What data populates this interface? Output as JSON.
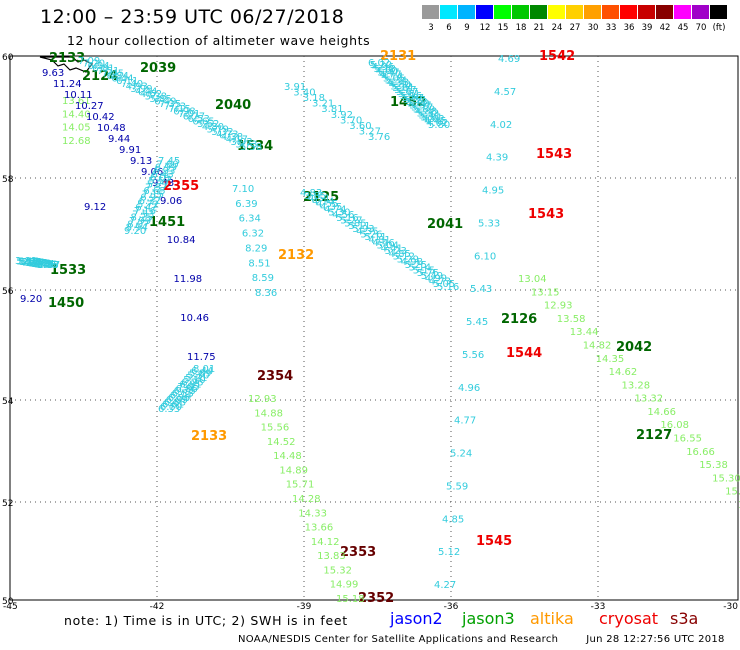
{
  "header": {
    "title": "12:00 – 23:59 UTC 06/27/2018",
    "subtitle": "12 hour collection of altimeter wave heights"
  },
  "colorbar": [
    {
      "color": "#9a9a9a",
      "label": "3"
    },
    {
      "color": "#00e8ff",
      "label": "6"
    },
    {
      "color": "#00b4ff",
      "label": "9"
    },
    {
      "color": "#0000ff",
      "label": "12"
    },
    {
      "color": "#00ff00",
      "label": "15"
    },
    {
      "color": "#00c800",
      "label": "18"
    },
    {
      "color": "#008800",
      "label": "21"
    },
    {
      "color": "#ffff00",
      "label": "24"
    },
    {
      "color": "#ffd000",
      "label": "27"
    },
    {
      "color": "#ffa000",
      "label": "30"
    },
    {
      "color": "#ff5000",
      "label": "33"
    },
    {
      "color": "#ff0000",
      "label": "36"
    },
    {
      "color": "#c80000",
      "label": "39"
    },
    {
      "color": "#880000",
      "label": "42"
    },
    {
      "color": "#ff00ff",
      "label": "45"
    },
    {
      "color": "#a000c8",
      "label": "70"
    },
    {
      "color": "#000000",
      "label": "(ft)"
    }
  ],
  "axes": {
    "lat_labels": [
      "60",
      "58",
      "56",
      "54",
      "52",
      "50"
    ],
    "lon_labels": [
      "-45",
      "-42",
      "-39",
      "-36",
      "-33",
      "-30"
    ]
  },
  "colors": {
    "cyan": "#33ccdd",
    "green": "#88ee66",
    "navy": "#0000aa",
    "dkgreen": "#006600",
    "orange": "#ff9900",
    "red": "#ee0000",
    "maroon": "#660000"
  },
  "times": [
    {
      "text": "2133",
      "c": "dkgreen"
    },
    {
      "text": "2039",
      "c": "dkgreen"
    },
    {
      "text": "2124",
      "c": "dkgreen"
    },
    {
      "text": "2040",
      "c": "dkgreen"
    },
    {
      "text": "1534",
      "c": "dkgreen"
    },
    {
      "text": "2355",
      "c": "red"
    },
    {
      "text": "2125",
      "c": "dkgreen"
    },
    {
      "text": "1451",
      "c": "dkgreen"
    },
    {
      "text": "2132",
      "c": "orange"
    },
    {
      "text": "1533",
      "c": "dkgreen"
    },
    {
      "text": "1450",
      "c": "dkgreen"
    },
    {
      "text": "2354",
      "c": "maroon"
    },
    {
      "text": "2133",
      "c": "orange"
    },
    {
      "text": "2353",
      "c": "maroon"
    },
    {
      "text": "2352",
      "c": "maroon"
    },
    {
      "text": "2131",
      "c": "orange"
    },
    {
      "text": "1452",
      "c": "dkgreen"
    },
    {
      "text": "1542",
      "c": "red"
    },
    {
      "text": "1543",
      "c": "red"
    },
    {
      "text": "1543",
      "c": "red"
    },
    {
      "text": "2041",
      "c": "dkgreen"
    },
    {
      "text": "2126",
      "c": "dkgreen"
    },
    {
      "text": "1544",
      "c": "red"
    },
    {
      "text": "2042",
      "c": "dkgreen"
    },
    {
      "text": "2127",
      "c": "dkgreen"
    },
    {
      "text": "1545",
      "c": "red"
    }
  ],
  "tracks": [
    {
      "name": "jason3-a",
      "c": "green",
      "values": [
        "13.61",
        "14.40",
        "14.05",
        "12.68"
      ]
    },
    {
      "name": "jason3-b",
      "c": "cyan",
      "values": [
        "7.09",
        "7.20",
        "6.94",
        "6.81",
        "7.51",
        "7.45",
        "6.84",
        "6.44",
        "6.11",
        "7.40",
        "4.93",
        "3.99",
        "4.44",
        "4.62",
        "5.38",
        "5.85",
        "6.49",
        "7.35",
        "7.23",
        "7.15",
        "6.98",
        "7.01",
        "6.77",
        "6.53",
        "6.65",
        "5.62",
        "4.80",
        "5.79",
        "5.32",
        "4.73",
        "4.38",
        "4.17",
        "3.92",
        "3.73",
        "5.58"
      ]
    },
    {
      "name": "jason2-a",
      "c": "navy",
      "values": [
        "9.63",
        "11.24",
        "10.11",
        "10.27",
        "10.42",
        "10.48",
        "9.44",
        "9.91",
        "9.13",
        "9.06",
        "9.43"
      ]
    },
    {
      "name": "jason3-c",
      "c": "cyan",
      "values": [
        "7.45",
        "7.60",
        "6.99",
        "6.93",
        "6.43",
        "6.05",
        "5.57",
        "5.77",
        "7.57",
        "6.65",
        "7.15",
        "6.97",
        "6.32",
        "5.72",
        "6.42",
        "7.16",
        "7.53",
        "8.25",
        "7.99",
        "8.07",
        "8.94",
        "9.20"
      ]
    },
    {
      "name": "jason2-b",
      "c": "navy",
      "values": [
        "9.06",
        "10.84",
        "11.98",
        "10.46",
        "11.75"
      ]
    },
    {
      "name": "jason3-d",
      "c": "cyan",
      "values": [
        "8.01",
        "6.44",
        "5.89",
        "5.30",
        "5.21",
        "5.10",
        "6.23",
        "6.81",
        "7.05",
        "6.86",
        "6.75",
        "6.53",
        "6.74",
        "6.56",
        "6.89",
        "6.83",
        "6.61",
        "6.50",
        "6.33"
      ]
    },
    {
      "name": "jason3-e",
      "c": "cyan",
      "values": [
        "7.10",
        "6.39",
        "6.34",
        "6.32",
        "8.29",
        "8.51",
        "8.59",
        "8.36"
      ]
    },
    {
      "name": "jason2-c",
      "c": "navy",
      "values": [
        "9.12",
        "9.20"
      ]
    },
    {
      "name": "jason3-f",
      "c": "cyan",
      "values": [
        "3.81",
        "5.10",
        "5.12",
        "5.28",
        "5.71",
        "2.96",
        "4.01",
        "3.88",
        "3.72",
        "3.79",
        "3.72",
        "3.49",
        "3.44",
        "3.59",
        "3.46",
        "3.33",
        "3.57"
      ]
    },
    {
      "name": "jason3-g",
      "c": "cyan",
      "values": [
        "3.91",
        "3.40",
        "3.18",
        "3.21",
        "3.81",
        "3.92",
        "3.70",
        "3.60",
        "3.27",
        "3.76"
      ]
    },
    {
      "name": "jason3-h",
      "c": "cyan",
      "values": [
        "6.02",
        "5.20",
        "4.96",
        "5.18",
        "4.60",
        "5.47",
        "4.77",
        "4.14",
        "5.05",
        "5.34",
        "4.33",
        "4.80",
        "5.12",
        "5.81",
        "5.77",
        "5.67",
        "5.61",
        "5.96",
        "5.67",
        "5.57",
        "5.73",
        "5.89",
        "5.97",
        "5.77",
        "5.89",
        "4.88",
        "5.32",
        "5.41",
        "5.01",
        "4.63",
        "4.45",
        "4.02",
        "5.80"
      ]
    },
    {
      "name": "jason3-i",
      "c": "cyan",
      "values": [
        "4.83",
        "3.85",
        "4.51",
        "4.14",
        "4.55",
        "4.35",
        "4.74",
        "5.30",
        "4.56",
        "5.16",
        "5.27",
        "5.85",
        "5.11",
        "5.93",
        "4.35",
        "5.26",
        "5.11",
        "4.81",
        "4.46",
        "5.04",
        "4.41",
        "5.23",
        "4.85",
        "5.12",
        "5.29",
        "4.98",
        "5.25",
        "5.14",
        "5.15",
        "5.75",
        "5.49",
        "4.99",
        "4.73",
        "5.05",
        "5.16"
      ]
    },
    {
      "name": "jason3-j",
      "c": "cyan",
      "values": [
        "4.69",
        "4.57",
        "4.02",
        "4.39",
        "4.95",
        "5.33",
        "6.10",
        "5.43",
        "5.45",
        "5.56",
        "4.96",
        "4.77",
        "5.24",
        "5.59",
        "4.85",
        "5.12",
        "4.27"
      ]
    },
    {
      "name": "jason3-k",
      "c": "green",
      "values": [
        "13.04",
        "13.15",
        "12.93",
        "13.58",
        "13.44",
        "14.82",
        "14.35",
        "14.62",
        "13.28",
        "13.32",
        "14.66",
        "16.08",
        "16.55",
        "16.66",
        "15.38",
        "15.30",
        "15.09",
        "14.89"
      ]
    },
    {
      "name": "jason3-l",
      "c": "green",
      "values": [
        "12.93",
        "14.88",
        "15.56",
        "14.52",
        "14.48",
        "14.89",
        "15.71",
        "14.28",
        "14.33",
        "13.66",
        "14.12",
        "13.83",
        "15.32",
        "14.99",
        "15.18"
      ]
    }
  ],
  "note": "note: 1) Time is in UTC; 2) SWH is in feet",
  "legend": [
    {
      "label": "jason2",
      "color": "#0000ff"
    },
    {
      "label": "jason3",
      "color": "#00a000"
    },
    {
      "label": "altika",
      "color": "#ff9900"
    },
    {
      "label": "cryosat",
      "color": "#ee0000"
    },
    {
      "label": "s3a",
      "color": "#880000"
    }
  ],
  "footer": {
    "source": "NOAA/NESDIS Center for Satellite Applications and Research",
    "timestamp": "Jun 28 12:27:56 UTC 2018"
  }
}
